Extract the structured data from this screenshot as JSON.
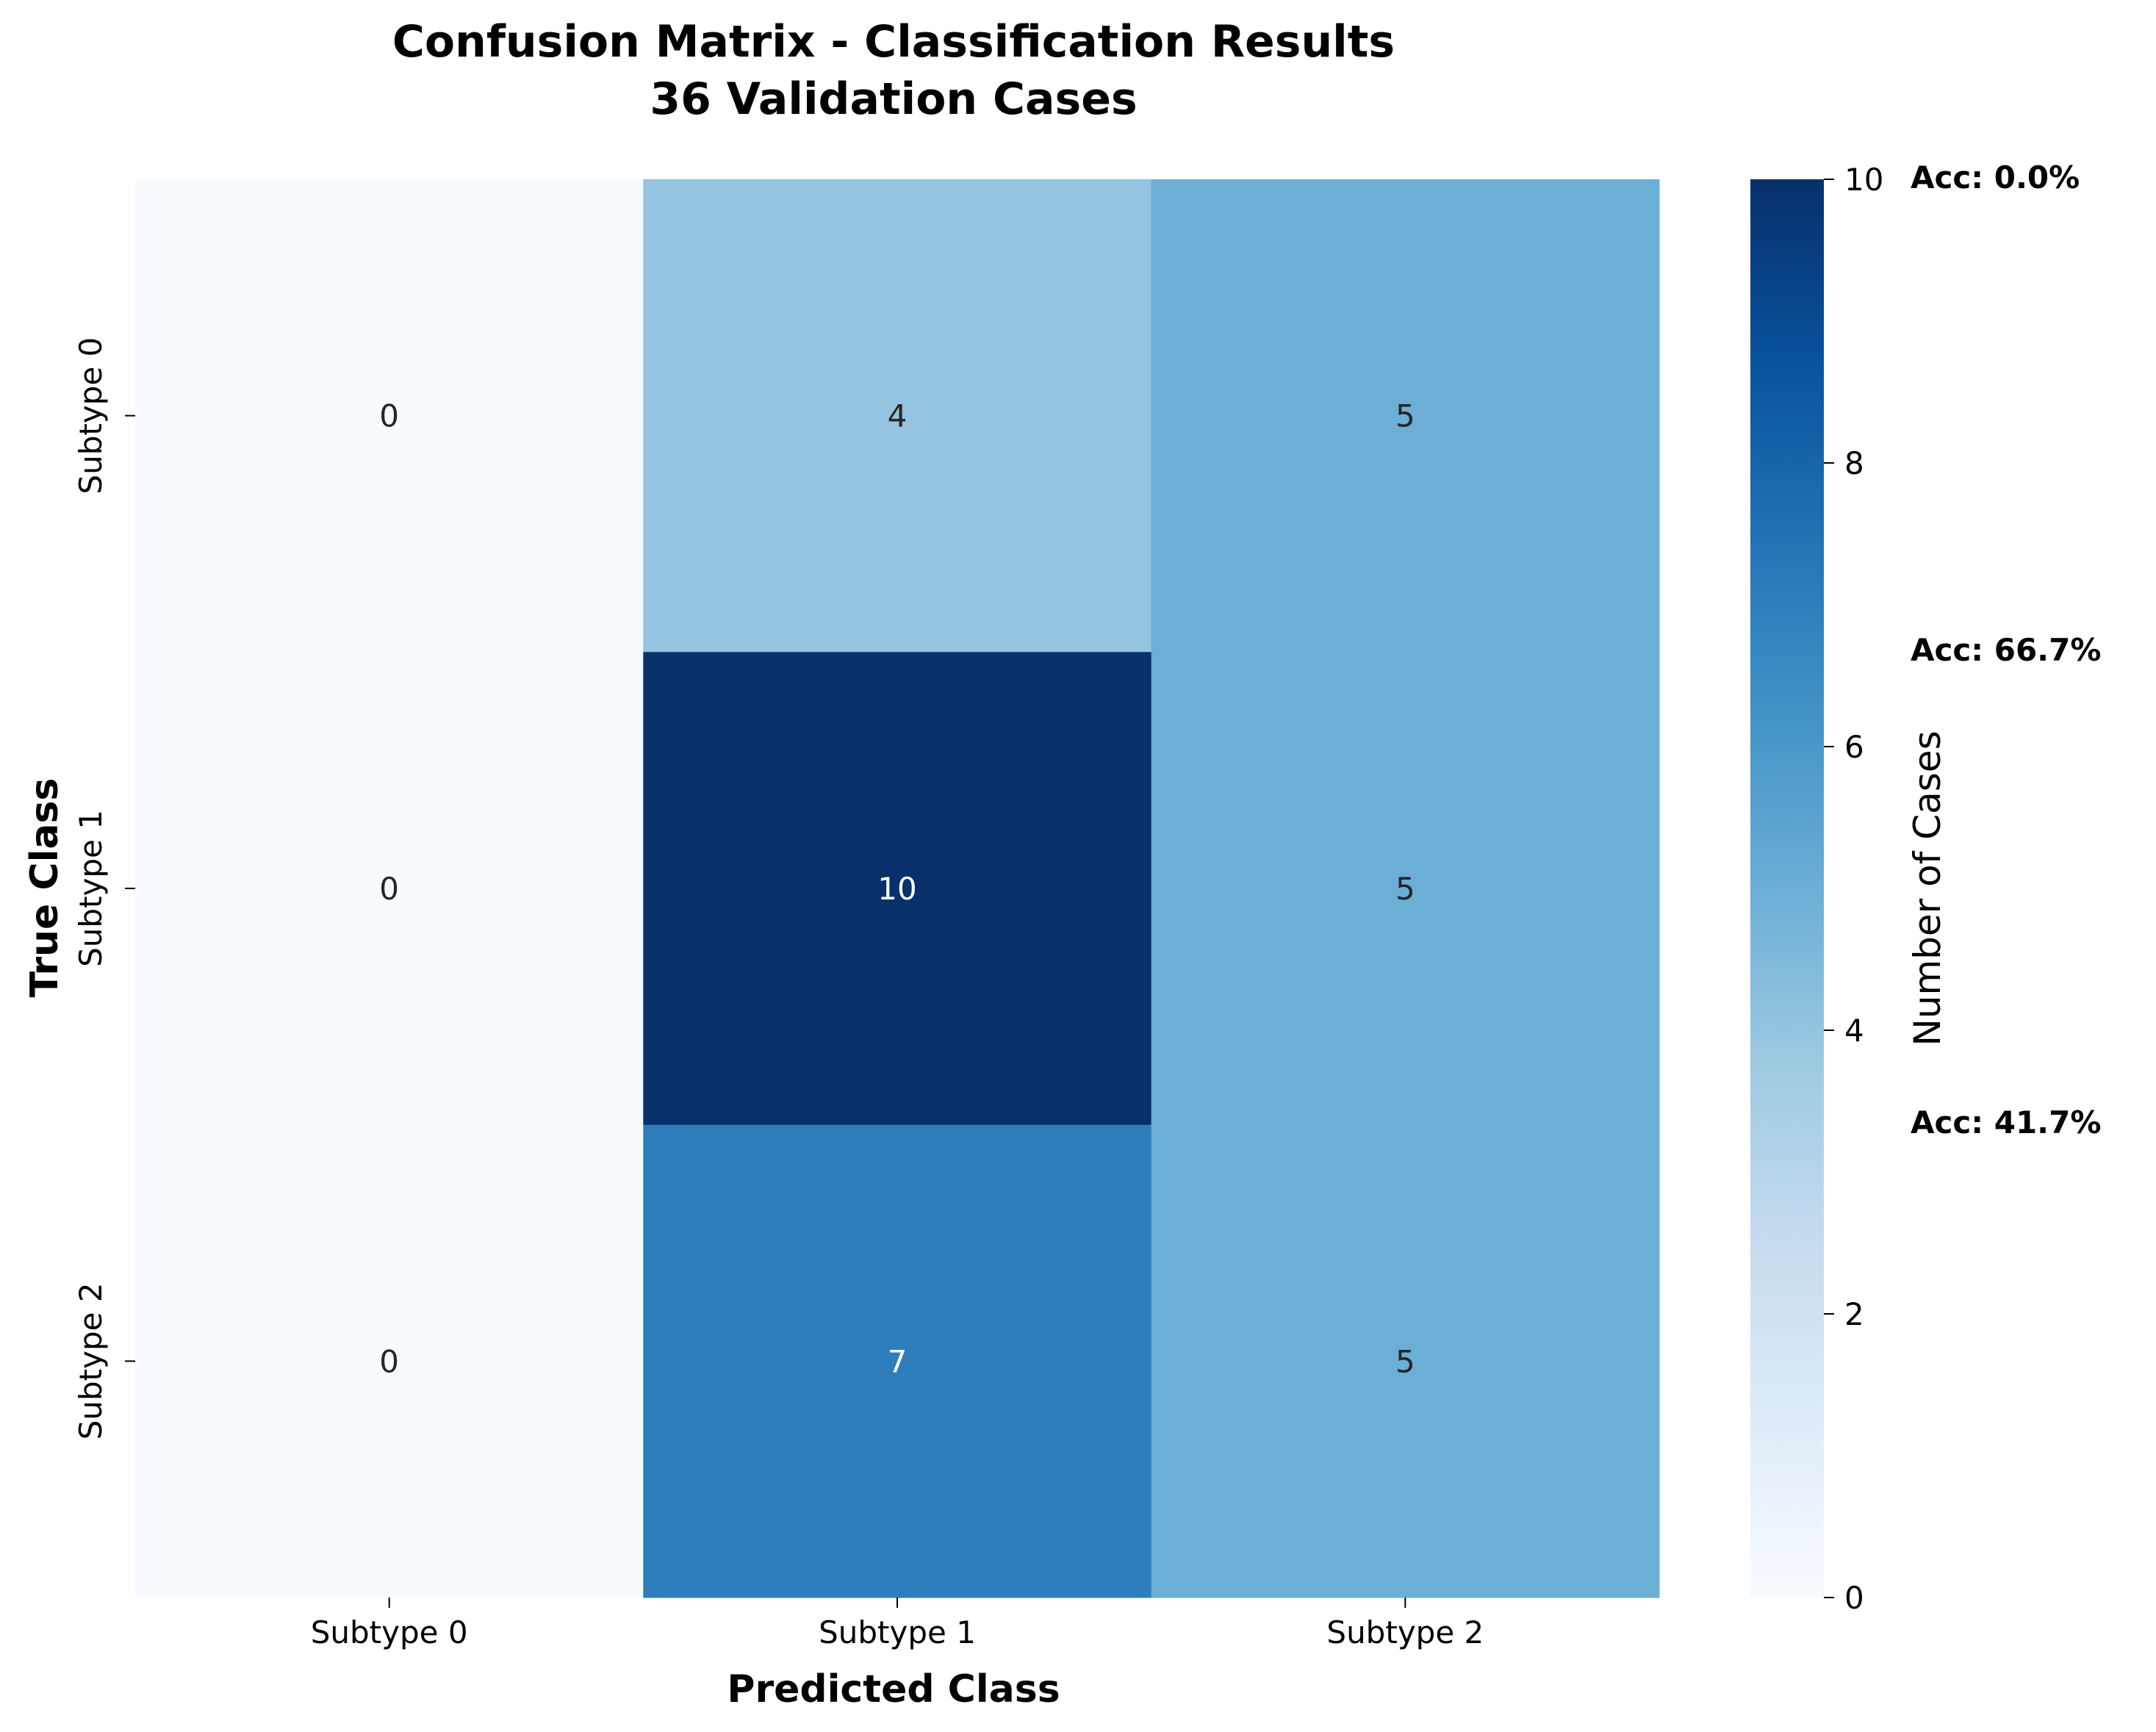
{
  "chart_data": {
    "type": "heatmap",
    "title_lines": [
      "Confusion Matrix - Classification Results",
      "36 Validation Cases"
    ],
    "xlabel": "Predicted Class",
    "ylabel": "True Class",
    "x_categories": [
      "Subtype 0",
      "Subtype 1",
      "Subtype 2"
    ],
    "y_categories": [
      "Subtype 0",
      "Subtype 1",
      "Subtype 2"
    ],
    "matrix": [
      [
        0,
        4,
        5
      ],
      [
        0,
        10,
        5
      ],
      [
        0,
        7,
        5
      ]
    ],
    "cell_labels": [
      [
        "0",
        "4",
        "5"
      ],
      [
        "0",
        "10",
        "5"
      ],
      [
        "0",
        "7",
        "5"
      ]
    ],
    "colormap": "Blues",
    "colorbar": {
      "label": "Number of Cases",
      "range": [
        0,
        10
      ],
      "ticks": [
        0,
        2,
        4,
        6,
        8,
        10
      ],
      "tick_labels": [
        "0",
        "2",
        "4",
        "6",
        "8",
        "10"
      ]
    },
    "accuracy_annotations": [
      "Acc: 0.0%",
      "Acc: 66.7%",
      "Acc: 41.7%"
    ]
  }
}
